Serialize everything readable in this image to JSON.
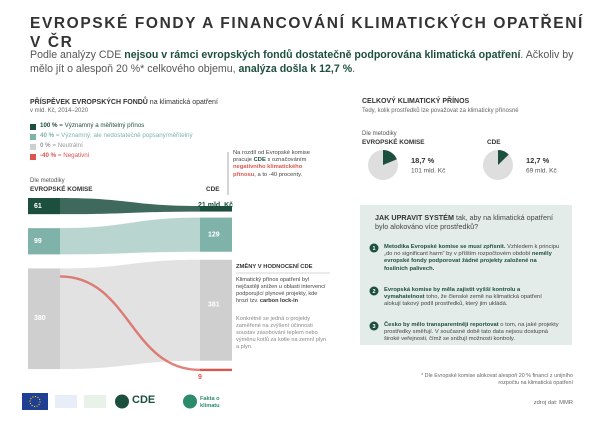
{
  "header": {
    "title": "EVROPSKÉ FONDY A FINANCOVÁNÍ KLIMATICKÝCH OPATŘENÍ V ČR",
    "intro": [
      "Podle analýzy CDE ",
      "nejsou v rámci evropských fondů dostatečně podporována klimatická opatření",
      ". Ačkoliv by mělo jít o alespoň 20 %* celkového objemu, ",
      "analýza došla k 12,7 %",
      "."
    ]
  },
  "contribution": {
    "title": "PŘÍSPĚVEK EVROPSKÝCH FONDŮ",
    "title_rest": " na klimatická opatření",
    "subtitle": "v mld. Kč, 2014–2020",
    "legend": [
      {
        "label": "100 %",
        "text": " = Významný a měřitelný přínos",
        "color": "#1d4f3f"
      },
      {
        "label": "40 %",
        "text": " = Významný, ale nedostatečně popsaný/měřitelný",
        "color": "#7fb3aa"
      },
      {
        "label": "0 %",
        "text": " = Neutrální",
        "color": "#cfcfcf"
      },
      {
        "label": "-40 %",
        "text": " = Negativní",
        "color": "#d9574f"
      }
    ],
    "note": [
      "Na rozdíl od Evropské komise pracuje ",
      "CDE",
      " s označováním ",
      "negativního klimatického přínosu",
      ", a to -40 procenty."
    ],
    "ek_label": [
      "Dle metodiky",
      "EVROPSKÉ KOMISE"
    ],
    "cde_label": "CDE",
    "ek_values": [
      61,
      99,
      380
    ],
    "cde_values": [
      21,
      129,
      381,
      9
    ],
    "cde_value_labels": [
      "21 mld. Kč",
      "129",
      "381",
      "9"
    ],
    "changes": {
      "title": "ZMĚNY V HODNOCENÍ CDE",
      "text": [
        "Klimatický přínos opatření byl nejčastěji snížen u oblasti intervencí podporující plynové projekty, kde hrozí tzv. ",
        "carbon lock-in"
      ],
      "detail": "Konkrétně se jedná o projekty zaměřené na zvýšení účinnosti soustav zásobování teplem nebo výměnu kotlů za kotle na zemní plyn a plyn."
    }
  },
  "totals": {
    "title": "CELKOVÝ KLIMATICKÝ PŘÍNOS",
    "subtitle": "Tedy, kolik prostředků lze považovat za klimaticky přínosné",
    "ek_label": [
      "Dle metodiky",
      "EVROPSKÉ KOMISE"
    ],
    "cde_label": "CDE",
    "color": "#1d4f3f",
    "pies": [
      {
        "value": 18.7,
        "value_label": "18,7 %",
        "amount": "101 mld. Kč"
      },
      {
        "value": 12.7,
        "value_label": "12,7 %",
        "amount": "69 mld. Kč"
      }
    ]
  },
  "system": {
    "title": "JAK UPRAVIT SYSTÉM",
    "title_rest": " tak, aby na klimatická opatření bylo alokováno více prostředků?",
    "steps": [
      {
        "number": 1,
        "text": [
          "Metodika Evropské komise se musí zpřísnit.",
          " Vzhledem k principu „do no significant harm“ by v příštím rozpočtovém období ",
          "neměly evropské fondy podporovat žádné projekty založené na fosilních palivech."
        ]
      },
      {
        "number": 2,
        "text": [
          "Evropská komise by měla zajistit vyšší kontrolu a vymahatelnost",
          " toho, že členské země na klimatická opatření alokují takový podíl prostředků, který jim ukládá."
        ]
      },
      {
        "number": 3,
        "text": [
          "Česko by mělo transparentněji reportovat",
          " o tom, na jaké projekty prostředky směřují. V současné době tato data nejsou dostupná široké veřejnosti, čímž se snižují možnosti kontroly."
        ]
      }
    ]
  },
  "footnote": "* Dle Evropské komise alokovat alespoň 20 % financí z unijního rozpočtu na klimatická opatření",
  "source": "zdroj dat: MMR",
  "logos": [
    "CDE",
    "Fakta o klimatu"
  ]
}
